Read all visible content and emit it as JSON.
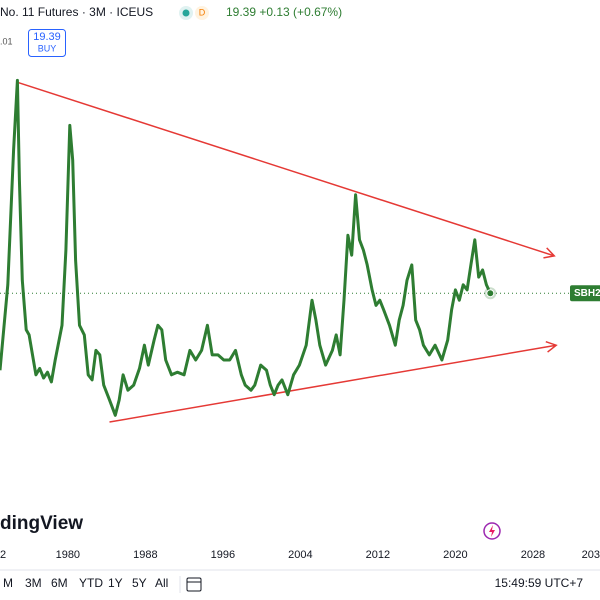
{
  "header": {
    "symbol": "No. 11 Futures · 3M · ICEUS",
    "badge": "D",
    "quote": "19.39 +0.13 (+0.67%)",
    "partial": ".01",
    "buy_price": "19.39",
    "buy_label": "BUY"
  },
  "logo": "dingView",
  "toolbar": {
    "ranges": [
      "M",
      "3M",
      "6M",
      "YTD",
      "1Y",
      "5Y",
      "All"
    ],
    "clock": "15:49:59 UTC+7"
  },
  "chart_data": {
    "type": "line",
    "x": [
      1973,
      1973.8,
      1974.4,
      1974.8,
      1975,
      1975.3,
      1975.7,
      1976,
      1976.7,
      1977.1,
      1977.5,
      1977.9,
      1978.3,
      1978.7,
      1979.4,
      1979.8,
      1980.2,
      1980.5,
      1980.8,
      1981.2,
      1981.7,
      1982.1,
      1982.5,
      1982.9,
      1983.3,
      1983.7,
      1984.3,
      1984.9,
      1985.3,
      1985.7,
      1986.2,
      1986.8,
      1987.4,
      1987.9,
      1988.3,
      1988.9,
      1989.3,
      1989.7,
      1990.1,
      1990.7,
      1991.3,
      1992,
      1992.6,
      1993.2,
      1993.8,
      1994.4,
      1994.9,
      1995.5,
      1996.1,
      1996.7,
      1997.3,
      1997.9,
      1998.3,
      1998.9,
      1999.3,
      1999.9,
      2000.5,
      2000.9,
      2001.3,
      2001.7,
      2002.1,
      2002.7,
      2003.3,
      2003.9,
      2004.6,
      2005.2,
      2005.6,
      2006,
      2006.6,
      2007.3,
      2007.7,
      2008.1,
      2008.5,
      2008.9,
      2009.3,
      2009.7,
      2010.1,
      2010.5,
      2010.9,
      2011.4,
      2011.8,
      2012.2,
      2012.6,
      2013.2,
      2013.8,
      2014.2,
      2014.6,
      2015,
      2015.5,
      2015.9,
      2016.3,
      2016.7,
      2017.3,
      2017.9,
      2018.6,
      2019.2,
      2019.6,
      2020,
      2020.4,
      2020.8,
      2021.2,
      2021.6,
      2022,
      2022.4,
      2022.8,
      2023.2,
      2023.6
    ],
    "series": [
      {
        "color": "#2e7d32",
        "values": [
          7.4,
          20.7,
          41.7,
          52.5,
          37,
          21.4,
          13.7,
          12.9,
          6.7,
          7.7,
          6.2,
          7.1,
          5.6,
          9,
          14.4,
          26.1,
          45.5,
          40.1,
          24.5,
          14.4,
          12.9,
          6.7,
          5.9,
          10.5,
          9.8,
          5.1,
          2.8,
          0.4,
          2.8,
          6.7,
          4.3,
          5.1,
          7.7,
          11.3,
          8.2,
          12.1,
          14.4,
          13.7,
          9,
          6.7,
          7.1,
          6.7,
          10.5,
          9,
          10.5,
          14.4,
          9.8,
          9.8,
          9,
          9,
          10.5,
          6.7,
          5.1,
          4.3,
          5.1,
          8.2,
          7.4,
          5.1,
          3.6,
          5.1,
          5.9,
          3.6,
          6.7,
          8.2,
          11.3,
          18.3,
          15.2,
          11.3,
          8.2,
          10.5,
          12.9,
          9.8,
          18.3,
          28.4,
          25.3,
          34.7,
          27.7,
          26.1,
          23.8,
          19.9,
          17.5,
          18.3,
          16.8,
          14.4,
          11.3,
          15.2,
          17.5,
          21.4,
          23.8,
          15.2,
          13.7,
          11.3,
          9.8,
          11.3,
          9,
          12.1,
          16.8,
          19.9,
          18.3,
          20.7,
          19.9,
          23.8,
          27.7,
          21.9,
          23,
          20.7,
          19.39
        ]
      }
    ],
    "last_label": "SBH2",
    "trendlines": [
      {
        "color": "#e53935",
        "x": [
          1974.8,
          2030.2
        ],
        "values": [
          52.2,
          25.2
        ]
      },
      {
        "color": "#e53935",
        "x": [
          1984.3,
          2030.4
        ],
        "values": [
          -0.65,
          11.3
        ]
      }
    ],
    "xlim": [
      1973,
      2034.92
    ],
    "ylim": [
      -19,
      65
    ],
    "xticks": [
      {
        "value": 1972,
        "label": "2"
      },
      1980,
      1988,
      1996,
      2004,
      2012,
      2020,
      2028,
      {
        "value": 2036,
        "label": "203"
      }
    ]
  }
}
